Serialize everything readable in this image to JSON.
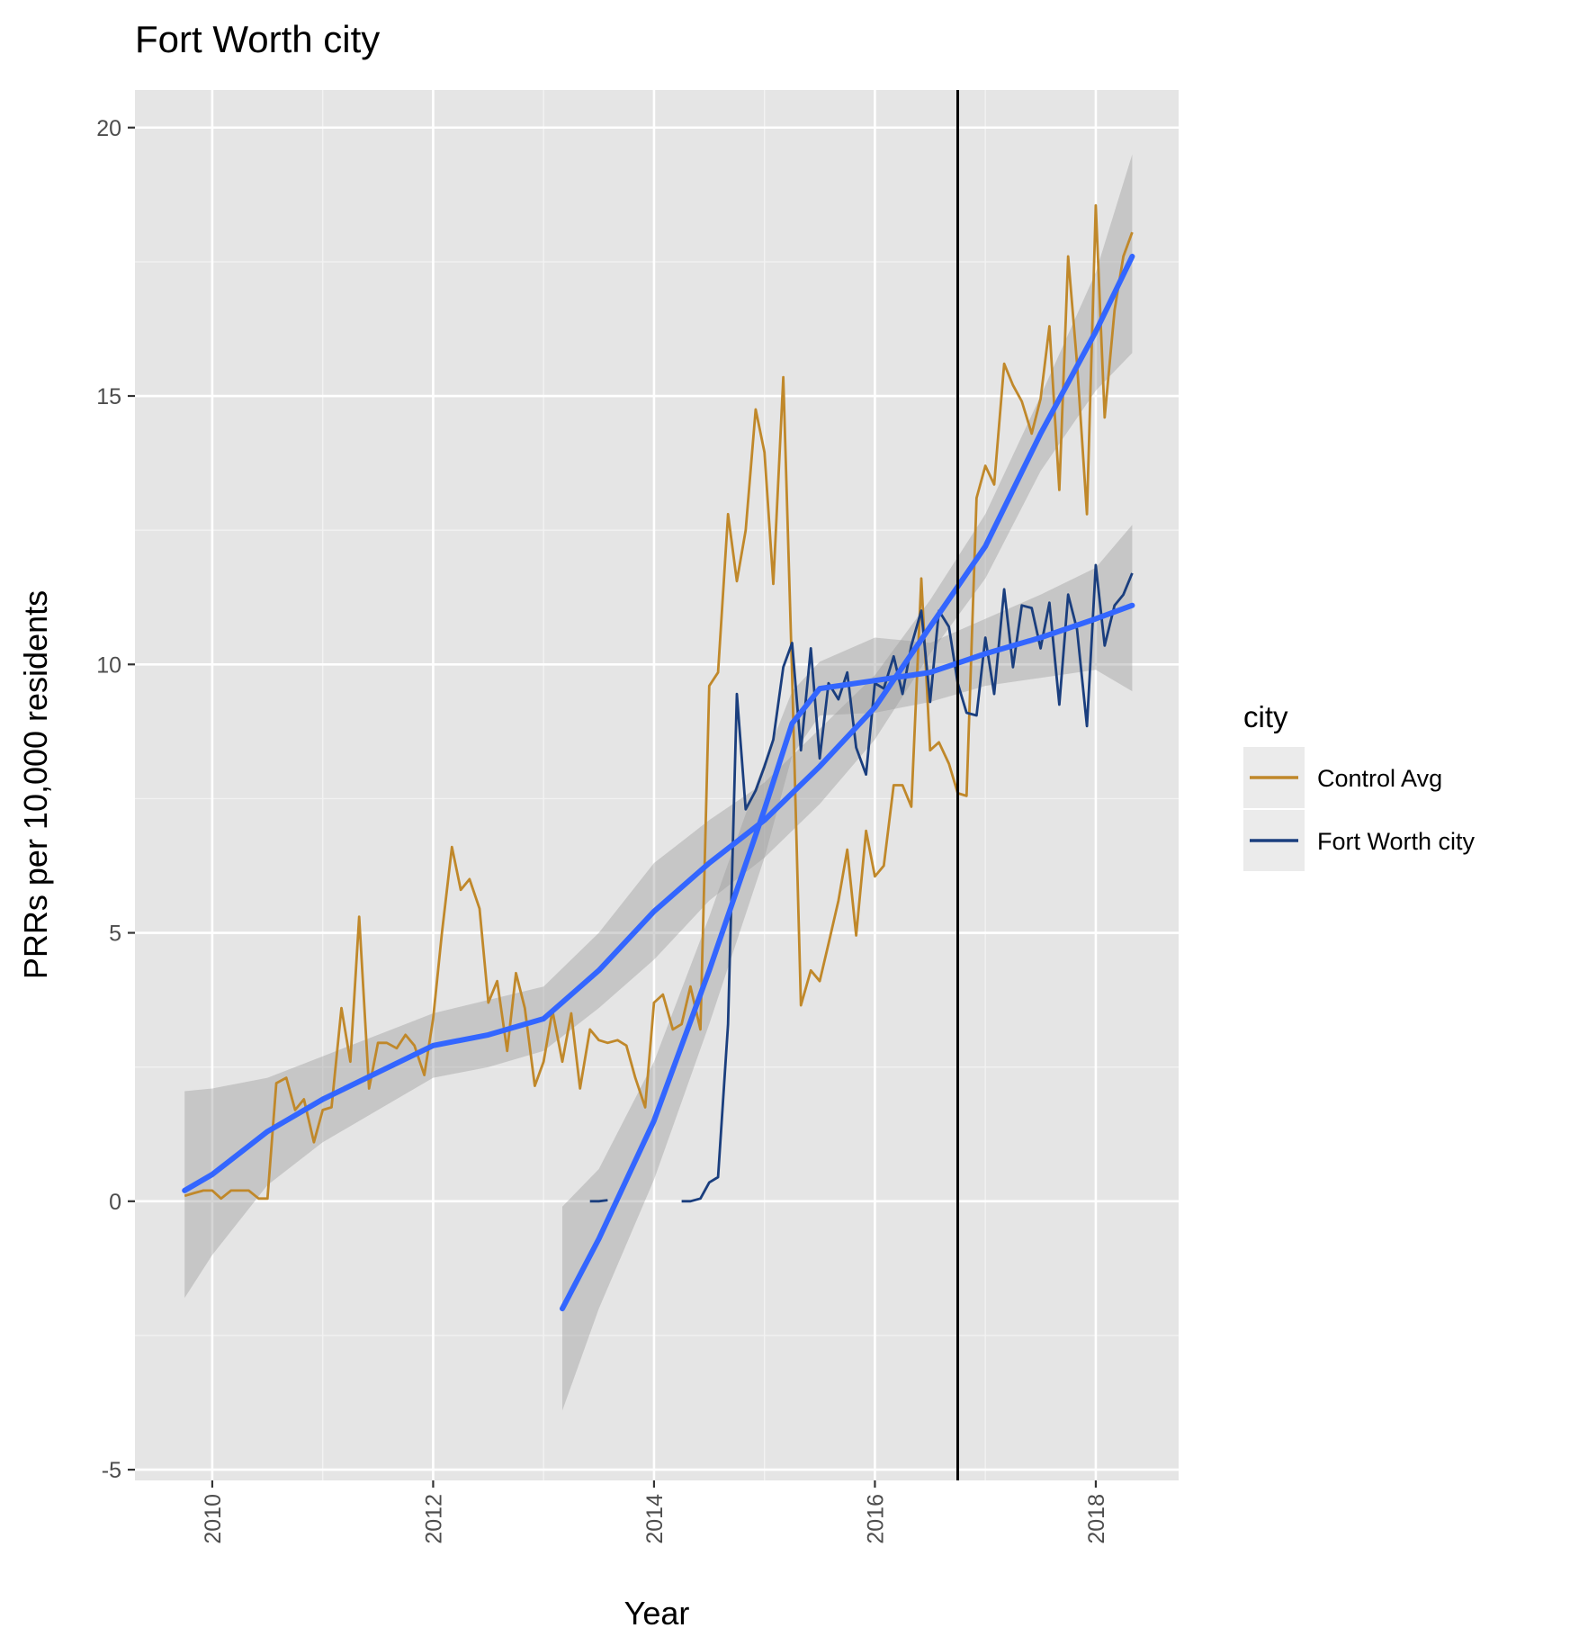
{
  "chart_data": {
    "type": "line",
    "title": "Fort Worth city",
    "xlabel": "Year",
    "ylabel": "PRRs per 10,000 residents",
    "xlim": [
      2009.3,
      2018.75
    ],
    "ylim": [
      -5.2,
      20.7
    ],
    "x_ticks": [
      2010,
      2012,
      2014,
      2016,
      2018
    ],
    "y_ticks": [
      -5,
      0,
      5,
      10,
      15,
      20
    ],
    "x_tick_labels": [
      "2010",
      "2012",
      "2014",
      "2016",
      "2018"
    ],
    "y_tick_labels": [
      "-5",
      "0",
      "5",
      "10",
      "15",
      "20"
    ],
    "grid": true,
    "legend": {
      "title": "city",
      "position": "right"
    },
    "vline": {
      "x": 2016.75,
      "color": "#000000"
    },
    "series": [
      {
        "name": "Control Avg",
        "color": "#C0882A",
        "points": [
          [
            2009.75,
            0.1
          ],
          [
            2009.83,
            0.15
          ],
          [
            2009.92,
            0.2
          ],
          [
            2010.0,
            0.2
          ],
          [
            2010.08,
            0.05
          ],
          [
            2010.17,
            0.2
          ],
          [
            2010.25,
            0.2
          ],
          [
            2010.33,
            0.2
          ],
          [
            2010.42,
            0.05
          ],
          [
            2010.5,
            0.05
          ],
          [
            2010.58,
            2.2
          ],
          [
            2010.67,
            2.3
          ],
          [
            2010.75,
            1.7
          ],
          [
            2010.83,
            1.9
          ],
          [
            2010.92,
            1.1
          ],
          [
            2011.0,
            1.7
          ],
          [
            2011.08,
            1.75
          ],
          [
            2011.17,
            3.6
          ],
          [
            2011.25,
            2.6
          ],
          [
            2011.33,
            5.3
          ],
          [
            2011.42,
            2.1
          ],
          [
            2011.5,
            2.95
          ],
          [
            2011.58,
            2.95
          ],
          [
            2011.67,
            2.85
          ],
          [
            2011.75,
            3.1
          ],
          [
            2011.83,
            2.9
          ],
          [
            2011.92,
            2.35
          ],
          [
            2012.0,
            3.4
          ],
          [
            2012.08,
            5.0
          ],
          [
            2012.17,
            6.6
          ],
          [
            2012.25,
            5.8
          ],
          [
            2012.33,
            6.0
          ],
          [
            2012.42,
            5.45
          ],
          [
            2012.5,
            3.7
          ],
          [
            2012.58,
            4.1
          ],
          [
            2012.67,
            2.8
          ],
          [
            2012.75,
            4.25
          ],
          [
            2012.83,
            3.6
          ],
          [
            2012.92,
            2.15
          ],
          [
            2013.0,
            2.6
          ],
          [
            2013.08,
            3.55
          ],
          [
            2013.17,
            2.6
          ],
          [
            2013.25,
            3.5
          ],
          [
            2013.33,
            2.1
          ],
          [
            2013.42,
            3.2
          ],
          [
            2013.5,
            3.0
          ],
          [
            2013.58,
            2.95
          ],
          [
            2013.67,
            3.0
          ],
          [
            2013.75,
            2.9
          ],
          [
            2013.83,
            2.3
          ],
          [
            2013.92,
            1.75
          ],
          [
            2014.0,
            3.7
          ],
          [
            2014.08,
            3.85
          ],
          [
            2014.17,
            3.2
          ],
          [
            2014.25,
            3.3
          ],
          [
            2014.33,
            4.0
          ],
          [
            2014.42,
            3.2
          ],
          [
            2014.5,
            9.6
          ],
          [
            2014.58,
            9.85
          ],
          [
            2014.67,
            12.8
          ],
          [
            2014.75,
            11.55
          ],
          [
            2014.83,
            12.5
          ],
          [
            2014.92,
            14.75
          ],
          [
            2015.0,
            13.95
          ],
          [
            2015.08,
            11.5
          ],
          [
            2015.17,
            15.35
          ],
          [
            2015.25,
            9.8
          ],
          [
            2015.33,
            3.65
          ],
          [
            2015.42,
            4.3
          ],
          [
            2015.5,
            4.1
          ],
          [
            2015.58,
            4.8
          ],
          [
            2015.67,
            5.6
          ],
          [
            2015.75,
            6.55
          ],
          [
            2015.83,
            4.95
          ],
          [
            2015.92,
            6.9
          ],
          [
            2016.0,
            6.05
          ],
          [
            2016.08,
            6.25
          ],
          [
            2016.17,
            7.75
          ],
          [
            2016.25,
            7.75
          ],
          [
            2016.33,
            7.35
          ],
          [
            2016.42,
            11.6
          ],
          [
            2016.5,
            8.4
          ],
          [
            2016.58,
            8.55
          ],
          [
            2016.67,
            8.15
          ],
          [
            2016.75,
            7.6
          ],
          [
            2016.83,
            7.55
          ],
          [
            2016.92,
            13.1
          ],
          [
            2017.0,
            13.7
          ],
          [
            2017.08,
            13.35
          ],
          [
            2017.17,
            15.6
          ],
          [
            2017.25,
            15.2
          ],
          [
            2017.33,
            14.9
          ],
          [
            2017.42,
            14.3
          ],
          [
            2017.5,
            14.95
          ],
          [
            2017.58,
            16.3
          ],
          [
            2017.67,
            13.25
          ],
          [
            2017.75,
            17.6
          ],
          [
            2017.83,
            15.6
          ],
          [
            2017.92,
            12.8
          ],
          [
            2018.0,
            18.55
          ],
          [
            2018.08,
            14.6
          ],
          [
            2018.17,
            16.6
          ],
          [
            2018.25,
            17.6
          ],
          [
            2018.33,
            18.05
          ]
        ]
      },
      {
        "name": "Fort Worth city",
        "color": "#1A3E7E",
        "segments": [
          [
            [
              2013.42,
              0.0
            ],
            [
              2013.5,
              0.0
            ],
            [
              2013.58,
              0.02
            ]
          ],
          [
            [
              2014.25,
              0.0
            ],
            [
              2014.33,
              0.0
            ],
            [
              2014.42,
              0.05
            ],
            [
              2014.5,
              0.35
            ],
            [
              2014.58,
              0.45
            ],
            [
              2014.67,
              3.3
            ],
            [
              2014.75,
              9.45
            ],
            [
              2014.83,
              7.3
            ],
            [
              2014.92,
              7.65
            ],
            [
              2015.0,
              8.1
            ],
            [
              2015.08,
              8.6
            ],
            [
              2015.17,
              9.95
            ],
            [
              2015.25,
              10.4
            ],
            [
              2015.33,
              8.4
            ],
            [
              2015.42,
              10.3
            ],
            [
              2015.5,
              8.25
            ],
            [
              2015.58,
              9.65
            ],
            [
              2015.67,
              9.35
            ],
            [
              2015.75,
              9.85
            ],
            [
              2015.83,
              8.45
            ],
            [
              2015.92,
              7.95
            ],
            [
              2016.0,
              9.65
            ],
            [
              2016.08,
              9.55
            ],
            [
              2016.17,
              10.15
            ],
            [
              2016.25,
              9.45
            ],
            [
              2016.33,
              10.35
            ],
            [
              2016.42,
              11.0
            ],
            [
              2016.5,
              9.3
            ],
            [
              2016.58,
              11.0
            ],
            [
              2016.67,
              10.7
            ],
            [
              2016.75,
              9.65
            ],
            [
              2016.83,
              9.1
            ],
            [
              2016.92,
              9.05
            ],
            [
              2017.0,
              10.5
            ],
            [
              2017.08,
              9.45
            ],
            [
              2017.17,
              11.4
            ],
            [
              2017.25,
              9.95
            ],
            [
              2017.33,
              11.1
            ],
            [
              2017.42,
              11.05
            ],
            [
              2017.5,
              10.3
            ],
            [
              2017.58,
              11.15
            ],
            [
              2017.67,
              9.25
            ],
            [
              2017.75,
              11.3
            ],
            [
              2017.83,
              10.65
            ],
            [
              2017.92,
              8.85
            ],
            [
              2018.0,
              11.85
            ],
            [
              2018.08,
              10.35
            ],
            [
              2018.17,
              11.1
            ],
            [
              2018.25,
              11.3
            ],
            [
              2018.33,
              11.7
            ]
          ]
        ]
      }
    ],
    "smooths": [
      {
        "of": "Control Avg",
        "color": "#3366FF",
        "x": [
          2009.75,
          2010.0,
          2010.5,
          2011.0,
          2011.5,
          2012.0,
          2012.5,
          2013.0,
          2013.5,
          2014.0,
          2014.5,
          2015.0,
          2015.5,
          2016.0,
          2016.5,
          2017.0,
          2017.5,
          2018.0,
          2018.33
        ],
        "y": [
          0.2,
          0.5,
          1.3,
          1.9,
          2.4,
          2.9,
          3.1,
          3.4,
          4.3,
          5.4,
          6.3,
          7.1,
          8.1,
          9.2,
          10.7,
          12.2,
          14.3,
          16.2,
          17.6
        ],
        "upper": [
          2.05,
          2.1,
          2.3,
          2.7,
          3.1,
          3.5,
          3.75,
          4.0,
          5.0,
          6.3,
          7.1,
          7.8,
          8.8,
          9.8,
          11.2,
          12.8,
          15.0,
          17.3,
          19.5
        ],
        "lower": [
          -1.8,
          -1.0,
          0.3,
          1.1,
          1.7,
          2.3,
          2.5,
          2.8,
          3.6,
          4.5,
          5.6,
          6.4,
          7.4,
          8.6,
          10.2,
          11.6,
          13.6,
          15.1,
          15.8
        ]
      },
      {
        "of": "Fort Worth city",
        "color": "#3366FF",
        "x": [
          2013.17,
          2013.5,
          2014.0,
          2014.5,
          2015.0,
          2015.25,
          2015.5,
          2016.0,
          2016.5,
          2017.0,
          2017.5,
          2018.0,
          2018.33
        ],
        "y": [
          -2.0,
          -0.7,
          1.5,
          4.3,
          7.3,
          8.9,
          9.55,
          9.7,
          9.85,
          10.2,
          10.5,
          10.85,
          11.1
        ],
        "upper": [
          -0.1,
          0.6,
          2.6,
          5.3,
          8.2,
          9.5,
          10.05,
          10.5,
          10.4,
          10.85,
          11.3,
          11.8,
          12.6
        ],
        "lower": [
          -3.9,
          -2.0,
          0.4,
          3.3,
          6.4,
          8.3,
          9.05,
          9.1,
          9.3,
          9.6,
          9.75,
          9.9,
          9.5
        ]
      }
    ]
  }
}
